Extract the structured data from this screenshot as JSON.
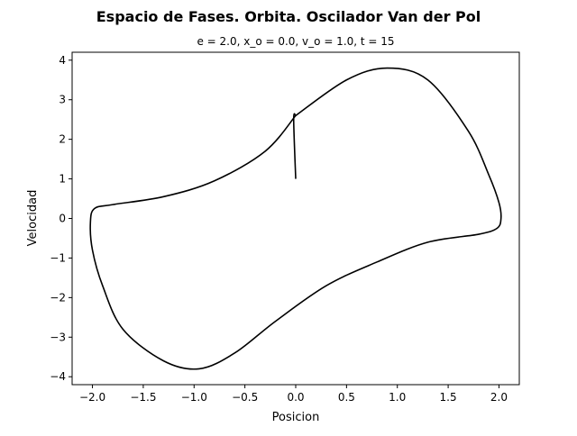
{
  "chart_data": {
    "type": "line",
    "title": "Espacio de Fases. Orbita. Oscilador Van der Pol",
    "subtitle": "e = 2.0, x_o = 0.0, v_o = 1.0, t = 15",
    "xlabel": "Posicion",
    "ylabel": "Velocidad",
    "xlim": [
      -2.2,
      2.2
    ],
    "ylim": [
      -4.2,
      4.2
    ],
    "xticks": [
      -2.0,
      -1.5,
      -1.0,
      -0.5,
      0.0,
      0.5,
      1.0,
      1.5,
      2.0
    ],
    "xtick_labels": [
      "−2.0",
      "−1.5",
      "−1.0",
      "−0.5",
      "0.0",
      "0.5",
      "1.0",
      "1.5",
      "2.0"
    ],
    "yticks": [
      -4,
      -3,
      -2,
      -1,
      0,
      1,
      2,
      3,
      4
    ],
    "ytick_labels": [
      "−4",
      "−3",
      "−2",
      "−1",
      "0",
      "1",
      "2",
      "3",
      "4"
    ],
    "grid": false,
    "line_color": "#000000",
    "series": [
      {
        "x": [
          0.0,
          -0.02,
          0.0
        ],
        "y": [
          1.0,
          2.5,
          2.6
        ]
      },
      {
        "x": [
          0.0,
          0.5,
          0.9,
          1.3,
          1.7,
          1.9,
          2.0,
          2.02,
          1.98,
          1.8,
          1.3,
          0.8,
          0.3,
          -0.2,
          -0.6,
          -0.95,
          -1.3,
          -1.7,
          -1.9,
          -2.0,
          -2.02,
          -1.98,
          -1.8,
          -1.3,
          -0.8,
          -0.3,
          0.0
        ],
        "y": [
          2.6,
          3.5,
          3.8,
          3.5,
          2.2,
          1.1,
          0.4,
          0.0,
          -0.25,
          -0.4,
          -0.6,
          -1.1,
          -1.7,
          -2.6,
          -3.4,
          -3.8,
          -3.6,
          -2.8,
          -1.7,
          -0.8,
          -0.1,
          0.25,
          0.35,
          0.55,
          0.95,
          1.7,
          2.6
        ]
      }
    ]
  }
}
